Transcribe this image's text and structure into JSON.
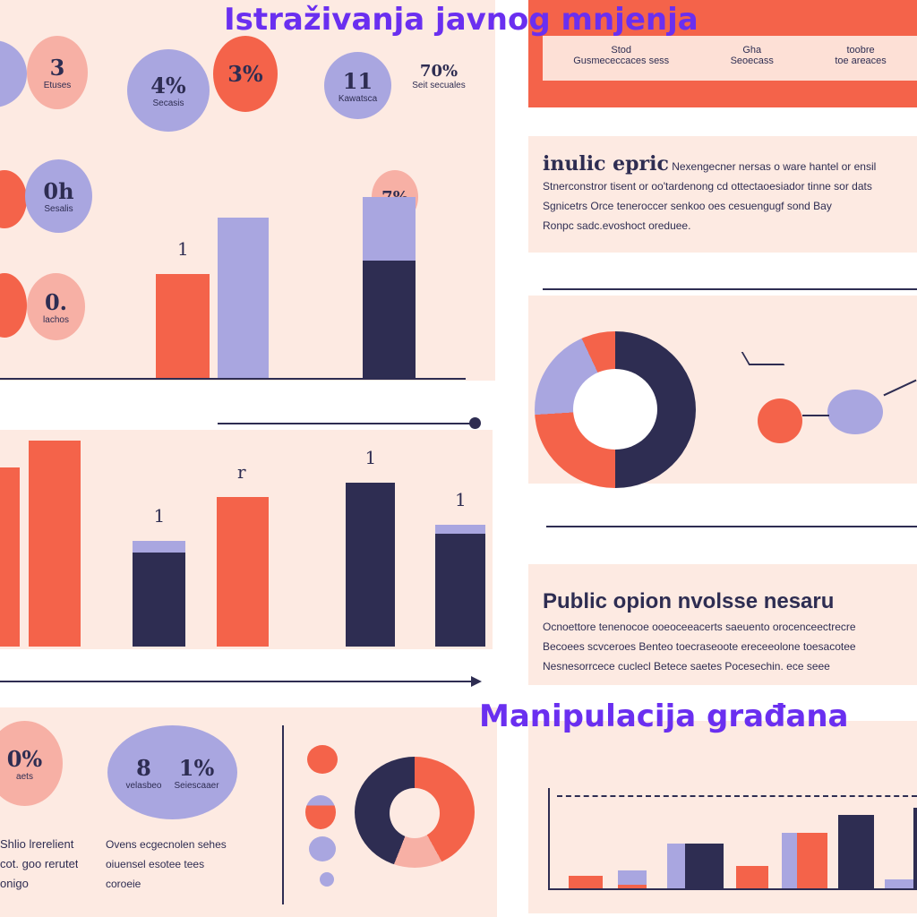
{
  "titles": {
    "main": "Istraživanja javnog mnjenja",
    "secondary": "Manipulacija građana"
  },
  "colors": {
    "coral": "#f4634a",
    "lavender": "#a9a6e0",
    "navy": "#2e2d52",
    "pink": "#f7b0a5",
    "panel": "#fdeae2",
    "title": "#6a2ff0"
  },
  "bubbles": [
    {
      "value": "3",
      "label": "Etuses"
    },
    {
      "value": "4%",
      "label": "Secasis"
    },
    {
      "value": "3%",
      "label": ""
    },
    {
      "value": "11",
      "label": "Kawatsca"
    },
    {
      "value": "70%",
      "label": "Seit secuales"
    },
    {
      "value": "0h",
      "label": "Sesalis"
    },
    {
      "value": "0.",
      "label": "lachos"
    },
    {
      "value": "7%",
      "label": ""
    },
    {
      "value": "0%",
      "label": "aets"
    },
    {
      "value": "8",
      "label": "velasbeo"
    },
    {
      "value": "1%",
      "label": "Seiescaaer"
    }
  ],
  "top_box": {
    "cols": [
      {
        "head": "Stod",
        "sub": "Gusmececcaces sess"
      },
      {
        "head": "Gha",
        "sub": "Seoecass"
      },
      {
        "head": "toobre",
        "sub": "toe areaces"
      }
    ]
  },
  "text_panel_1": {
    "heading": "inulic epric",
    "lines": [
      "Nexengecner nersas o ware hantel or ensil",
      "Stnerconstror tisent or oo'tardenong cd ottectaoesiador tinne sor dats",
      "Sgnicetrs Orce teneroccer senkoo oes cesuengugf sond Bay",
      "Ronpc sadc.evoshoct oreduee."
    ]
  },
  "text_panel_2": {
    "heading": "Public opion nvolsse nesaru",
    "lines": [
      "Ocnoettore tenenocoe ooeoceeacerts saeuento orocenceectrecre",
      "Becoees scvceroes Benteo toecraseoote ereceeolone toesacotee",
      "Nesnesorrcece cuclecl Betece saetes Pocesechin. ece seee"
    ]
  },
  "bottom_text": {
    "left": [
      "Shlio lrerelient",
      "cot. goo rerutet",
      "onigo"
    ],
    "right": [
      "Ovens ecgecnolen sehes",
      "oiuensel esotee tees",
      "coroeie"
    ]
  },
  "chart_data": [
    {
      "type": "bar",
      "title": "",
      "values_stacked": [
        [
          {
            "c": "coral",
            "v": 116
          }
        ],
        [
          {
            "c": "lavender",
            "v": 179
          }
        ],
        [
          {
            "c": "navy",
            "v": 131
          },
          {
            "c": "lavender",
            "v": 71
          }
        ]
      ],
      "labels": [
        "1",
        "",
        "7%"
      ]
    },
    {
      "type": "bar",
      "title": "",
      "values_stacked": [
        [
          {
            "c": "coral",
            "v": 200
          }
        ],
        [
          {
            "c": "coral",
            "v": 230
          }
        ],
        [
          {
            "c": "navy",
            "v": 105
          },
          {
            "c": "lavender",
            "v": 13
          }
        ],
        [
          {
            "c": "coral",
            "v": 167
          }
        ],
        [
          {
            "c": "navy",
            "v": 183
          }
        ],
        [
          {
            "c": "navy",
            "v": 126
          },
          {
            "c": "lavender",
            "v": 10
          }
        ]
      ],
      "labels": [
        "",
        "",
        "1",
        "r",
        "1",
        "1"
      ]
    },
    {
      "type": "pie",
      "title": "",
      "slices": [
        {
          "c": "navy",
          "v": 50
        },
        {
          "c": "coral",
          "v": 24
        },
        {
          "c": "lavender",
          "v": 19
        },
        {
          "c": "coral",
          "v": 7
        }
      ]
    },
    {
      "type": "pie",
      "title": "",
      "slices": [
        {
          "c": "coral",
          "v": 42
        },
        {
          "c": "pink",
          "v": 14
        },
        {
          "c": "navy",
          "v": 44
        }
      ]
    },
    {
      "type": "bar",
      "title": "",
      "values_stacked": [
        [
          {
            "c": "coral",
            "v": 14
          }
        ],
        [
          {
            "c": "coral",
            "v": 4
          },
          {
            "c": "lavender",
            "v": 16
          }
        ],
        [
          {
            "c": "lavender",
            "v": 50
          }
        ],
        [
          {
            "c": "navy",
            "v": 50
          }
        ],
        [
          {
            "c": "coral",
            "v": 25
          }
        ],
        [
          {
            "c": "lavender",
            "v": 62
          }
        ],
        [
          {
            "c": "coral",
            "v": 62
          }
        ],
        [
          {
            "c": "navy",
            "v": 82
          }
        ],
        [
          {
            "c": "lavender",
            "v": 10
          }
        ],
        [
          {
            "c": "navy",
            "v": 90
          }
        ]
      ]
    }
  ]
}
